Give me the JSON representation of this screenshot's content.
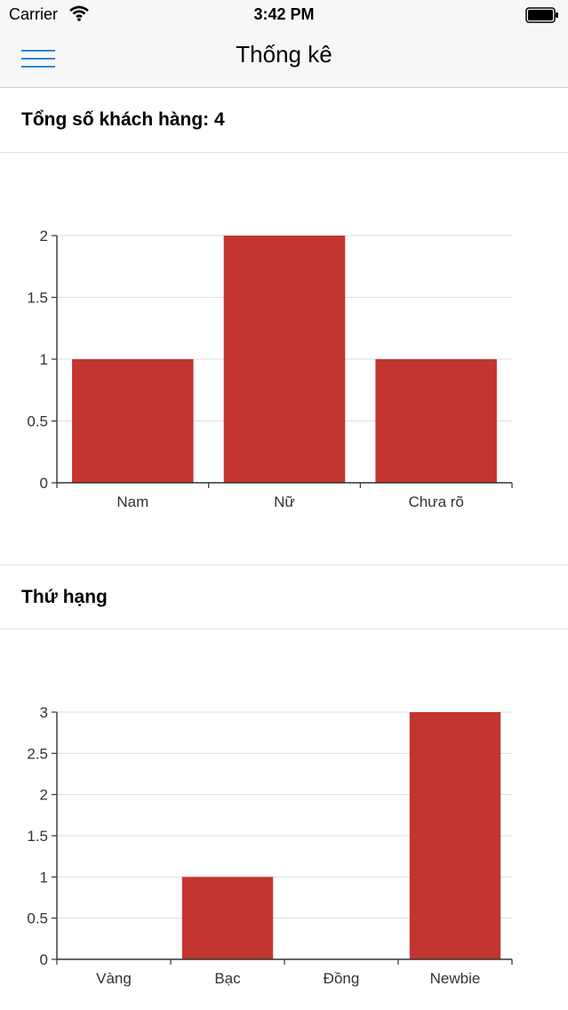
{
  "status_bar": {
    "carrier": "Carrier",
    "time": "3:42 PM"
  },
  "nav": {
    "title": "Thống kê"
  },
  "section1": {
    "header": "Tổng số khách hàng: 4"
  },
  "section2": {
    "header": "Thứ hạng"
  },
  "colors": {
    "bar": "#c23531",
    "accent": "#2f8ad8"
  },
  "chart_data": [
    {
      "type": "bar",
      "categories": [
        "Nam",
        "Nữ",
        "Chưa rõ"
      ],
      "values": [
        1,
        2,
        1
      ],
      "ylim": [
        0,
        2
      ],
      "yticks": [
        "0",
        "0.5",
        "1",
        "1.5",
        "2"
      ],
      "grid": true
    },
    {
      "type": "bar",
      "categories": [
        "Vàng",
        "Bạc",
        "Đồng",
        "Newbie"
      ],
      "values": [
        0,
        1,
        0,
        3
      ],
      "ylim": [
        0,
        3
      ],
      "yticks": [
        "0",
        "0.5",
        "1",
        "1.5",
        "2",
        "2.5",
        "3"
      ],
      "grid": true
    }
  ]
}
